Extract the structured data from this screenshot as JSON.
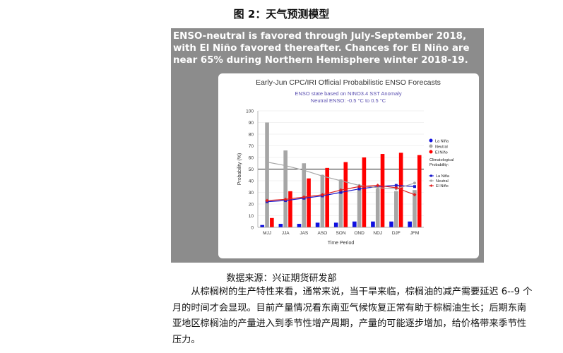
{
  "figure_title": "图 2：天气预测模型",
  "headline": "ENSO-neutral is favored through July-September 2018, with El Niño favored thereafter.  Chances for El Niño are near 65% during Northern Hemisphere winter 2018-19.",
  "source": "数据来源：兴证期货研发部",
  "paragraph": "从棕榈树的生产特性来看，通常来说，当干旱来临，棕榈油的减产需要延迟 6--9 个月的时间才会显现。目前产量情况看东南亚气候恢复正常有助于棕榈油生长；后期东南亚地区棕榈油的产量进入到季节性增产周期，产量的可能逐步增加，给价格带来季节性压力。",
  "chart_data": {
    "type": "bar",
    "title": "Early-Jun CPC/IRI Official Probabilistic ENSO Forecasts",
    "subtitle_lines": [
      "ENSO state based on NINO3.4 SST Anomaly",
      "Neutral ENSO: -0.5 °C to 0.5 °C"
    ],
    "xlabel": "Time Period",
    "ylabel": "Probability (%)",
    "ylim": [
      0,
      100
    ],
    "yticks": [
      0,
      10,
      20,
      30,
      40,
      50,
      60,
      70,
      80,
      90,
      100
    ],
    "categories": [
      "MJJ",
      "JJA",
      "JAS",
      "ASO",
      "SON",
      "OND",
      "NDJ",
      "DJF",
      "JFM"
    ],
    "series": [
      {
        "name": "La Niña",
        "color": "#1010e0",
        "values": [
          2,
          3,
          3,
          4,
          4,
          5,
          5,
          5,
          5
        ]
      },
      {
        "name": "Neutral",
        "color": "#a6a6a6",
        "values": [
          90,
          66,
          55,
          45,
          41,
          35,
          33,
          31,
          32
        ]
      },
      {
        "name": "El Niño",
        "color": "#ff0000",
        "values": [
          8,
          31,
          42,
          51,
          56,
          60,
          63,
          64,
          62
        ]
      }
    ],
    "climatology_title_lines": [
      "Climatological",
      "Probability:"
    ],
    "climatology": [
      {
        "name": "La Niña",
        "color": "#1a1acc",
        "marker": "square",
        "values": [
          22,
          23,
          25,
          27,
          30,
          33,
          35,
          36,
          35
        ]
      },
      {
        "name": "Neutral",
        "color": "#a6a6a6",
        "marker": "circle",
        "values": [
          56,
          53,
          49,
          44,
          40,
          36,
          34,
          33,
          38
        ]
      },
      {
        "name": "El Niño",
        "color": "#e02020",
        "marker": "diamond",
        "values": [
          23,
          24,
          26,
          28,
          32,
          35,
          36,
          34,
          28
        ]
      }
    ],
    "reference_line": 50,
    "legend_position": "right"
  }
}
